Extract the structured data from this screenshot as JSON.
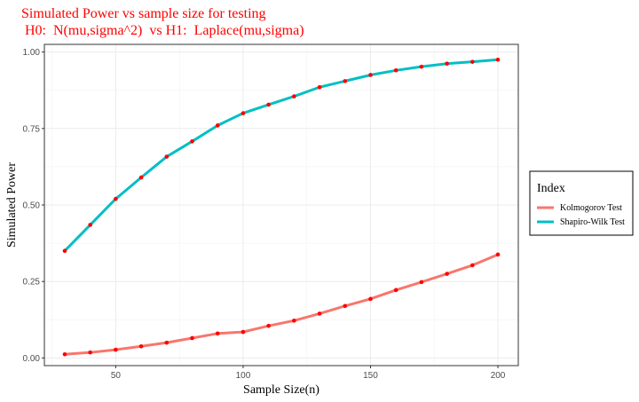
{
  "chart_data": {
    "type": "line",
    "title": "Simulated Power vs sample size for testing",
    "subtitle": " H0:  N(mu,sigma^2)  vs H1:  Laplace(mu,sigma)",
    "xlabel": "Sample Size(n)",
    "ylabel": "Simulated Power",
    "xlim": [
      22,
      208
    ],
    "ylim": [
      -0.025,
      1.025
    ],
    "xticks": [
      50,
      100,
      150,
      200
    ],
    "yticks": [
      0.0,
      0.25,
      0.5,
      0.75,
      1.0
    ],
    "xtick_labels": [
      "50",
      "100",
      "150",
      "200"
    ],
    "ytick_labels": [
      "0.00",
      "0.25",
      "0.50",
      "0.75",
      "1.00"
    ],
    "grid": true,
    "legend_title": "Index",
    "legend_position": "right",
    "point_color": "#ff0000",
    "x": [
      30,
      40,
      50,
      60,
      70,
      80,
      90,
      100,
      110,
      120,
      130,
      140,
      150,
      160,
      170,
      180,
      190,
      200
    ],
    "series": [
      {
        "name": "Kolmogorov Test",
        "color": "#f8766d",
        "values": [
          0.012,
          0.018,
          0.027,
          0.038,
          0.05,
          0.065,
          0.08,
          0.085,
          0.105,
          0.122,
          0.145,
          0.17,
          0.193,
          0.222,
          0.248,
          0.275,
          0.303,
          0.338
        ]
      },
      {
        "name": "Shapiro-Wilk Test",
        "color": "#00bfc4",
        "values": [
          0.35,
          0.435,
          0.52,
          0.59,
          0.658,
          0.708,
          0.76,
          0.8,
          0.828,
          0.855,
          0.885,
          0.905,
          0.925,
          0.94,
          0.952,
          0.962,
          0.968,
          0.975
        ]
      }
    ]
  }
}
